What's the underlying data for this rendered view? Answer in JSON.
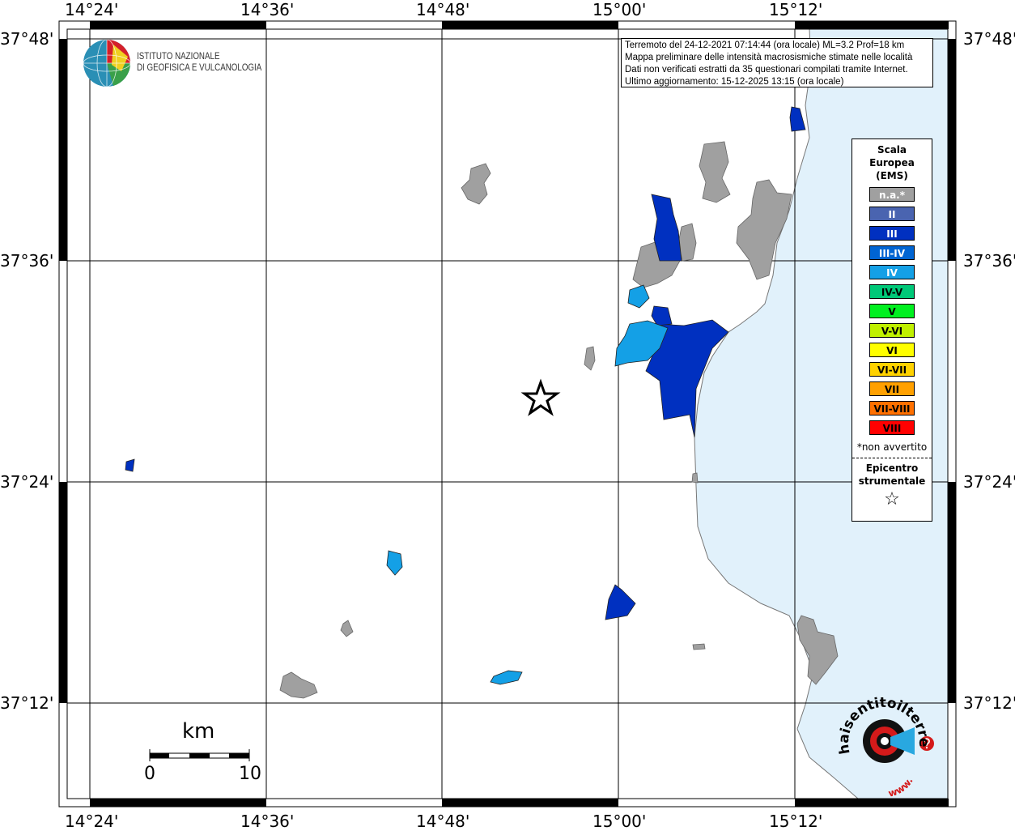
{
  "header_box": {
    "line1": "Terremoto del 24-12-2021 07:14:44 (ora locale) ML=3.2 Prof=18 km",
    "line2": "Mappa preliminare delle intensità macrosismiche stimate nelle località",
    "line3": "Dati non verificati estratti da 35 questionari compilati tramite Internet.",
    "line4": "Ultimo aggiornamento: 15-12-2025 13:15 (ora locale)"
  },
  "ingv_logo": {
    "line1": "ISTITUTO NAZIONALE",
    "line2": "DI GEOFISICA E VULCANOLOGIA"
  },
  "axes": {
    "longitude_ticks": [
      "14°24'",
      "14°36'",
      "14°48'",
      "15°00'",
      "15°12'"
    ],
    "latitude_ticks": [
      "37°48'",
      "37°36'",
      "37°24'",
      "37°12'"
    ]
  },
  "legend": {
    "title_lines": [
      "Scala",
      "Europea",
      "(EMS)"
    ],
    "items": [
      {
        "label": "n.a.*",
        "color": "#a0a0a0",
        "text_color": "#ffffff"
      },
      {
        "label": "II",
        "color": "#4a64b0",
        "text_color": "#ffffff"
      },
      {
        "label": "III",
        "color": "#0030c0",
        "text_color": "#ffffff"
      },
      {
        "label": "III-IV",
        "color": "#0064d2",
        "text_color": "#ffffff"
      },
      {
        "label": "IV",
        "color": "#14a0e6",
        "text_color": "#ffffff"
      },
      {
        "label": "IV-V",
        "color": "#00c878",
        "text_color": "#000000"
      },
      {
        "label": "V",
        "color": "#00f020",
        "text_color": "#000000"
      },
      {
        "label": "V-VI",
        "color": "#c0f000",
        "text_color": "#000000"
      },
      {
        "label": "VI",
        "color": "#ffff00",
        "text_color": "#000000"
      },
      {
        "label": "VI-VII",
        "color": "#ffd200",
        "text_color": "#000000"
      },
      {
        "label": "VII",
        "color": "#ffa000",
        "text_color": "#000000"
      },
      {
        "label": "VII-VIII",
        "color": "#ff7000",
        "text_color": "#000000"
      },
      {
        "label": "VIII",
        "color": "#ff0000",
        "text_color": "#000000"
      }
    ],
    "note": "*non avvertito",
    "epicenter_lines": [
      "Epicentro",
      "strumentale"
    ],
    "epicenter_symbol": "☆"
  },
  "scale_bar": {
    "unit": "km",
    "start": "0",
    "end": "10"
  },
  "hsit_logo": {
    "text": "haisentitoilterremoto.it",
    "prefix": "www."
  },
  "colors": {
    "sea": "#e1f1fb",
    "land": "#ffffff",
    "na": "#a0a0a0",
    "III": "#0030c0",
    "IV": "#14a0e6"
  }
}
